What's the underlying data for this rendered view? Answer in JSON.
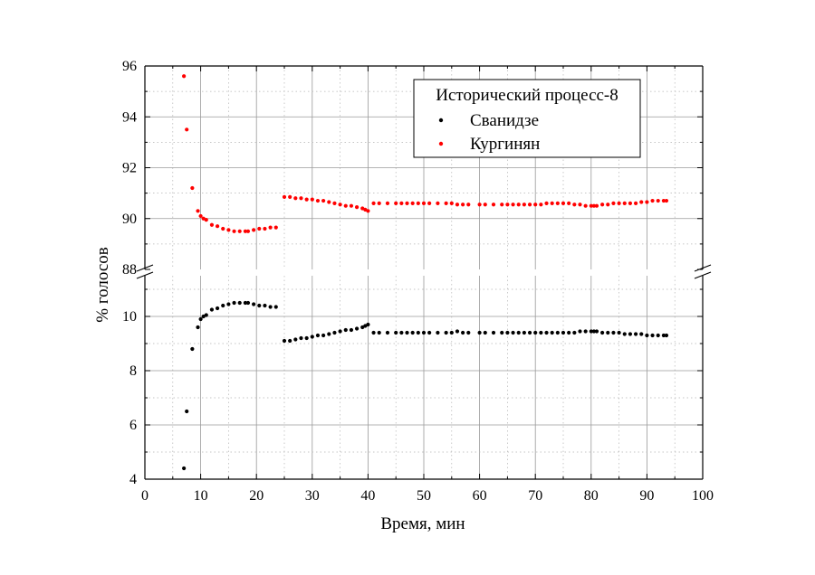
{
  "chart_data": {
    "type": "scatter",
    "xlabel": "Время, мин",
    "ylabel": "% голосов",
    "xlim": [
      0,
      100
    ],
    "ylim_upper": [
      88,
      96
    ],
    "ylim_lower": [
      4,
      11.5
    ],
    "axis_break": "y between 11.5 and 88",
    "x_ticks": [
      0,
      10,
      20,
      30,
      40,
      50,
      60,
      70,
      80,
      90,
      100
    ],
    "x_tick_labels": [
      "0",
      "10",
      "20",
      "30",
      "40",
      "50",
      "60",
      "70",
      "80",
      "90",
      "100"
    ],
    "y_ticks_upper": [
      88,
      90,
      92,
      94,
      96
    ],
    "y_tick_labels_upper": [
      "88",
      "90",
      "92",
      "94",
      "96"
    ],
    "y_ticks_lower": [
      4,
      6,
      8,
      10
    ],
    "y_tick_labels_lower": [
      "4",
      "6",
      "8",
      "10"
    ],
    "grid": true,
    "legend": {
      "title": "Исторический процесс-8",
      "placement": "top-right"
    },
    "series": [
      {
        "name": "Сванидзе",
        "color": "#000000",
        "points": [
          [
            7.0,
            4.4
          ],
          [
            7.5,
            6.5
          ],
          [
            8.5,
            8.8
          ],
          [
            9.5,
            9.6
          ],
          [
            10.0,
            9.9
          ],
          [
            10.5,
            10.0
          ],
          [
            11.0,
            10.05
          ],
          [
            12.0,
            10.25
          ],
          [
            13.0,
            10.3
          ],
          [
            14.0,
            10.4
          ],
          [
            15.0,
            10.45
          ],
          [
            16.0,
            10.5
          ],
          [
            17.0,
            10.5
          ],
          [
            18.0,
            10.5
          ],
          [
            18.5,
            10.5
          ],
          [
            19.5,
            10.45
          ],
          [
            20.5,
            10.4
          ],
          [
            21.5,
            10.4
          ],
          [
            22.5,
            10.35
          ],
          [
            23.5,
            10.35
          ],
          [
            25.0,
            9.1
          ],
          [
            26.0,
            9.1
          ],
          [
            27.0,
            9.15
          ],
          [
            28.0,
            9.2
          ],
          [
            29.0,
            9.2
          ],
          [
            30.0,
            9.25
          ],
          [
            31.0,
            9.3
          ],
          [
            32.0,
            9.3
          ],
          [
            33.0,
            9.35
          ],
          [
            34.0,
            9.4
          ],
          [
            35.0,
            9.45
          ],
          [
            36.0,
            9.5
          ],
          [
            37.0,
            9.5
          ],
          [
            38.0,
            9.55
          ],
          [
            39.0,
            9.6
          ],
          [
            39.5,
            9.65
          ],
          [
            40.0,
            9.7
          ],
          [
            41.0,
            9.4
          ],
          [
            42.0,
            9.4
          ],
          [
            43.5,
            9.4
          ],
          [
            45.0,
            9.4
          ],
          [
            46.0,
            9.4
          ],
          [
            47.0,
            9.4
          ],
          [
            48.0,
            9.4
          ],
          [
            49.0,
            9.4
          ],
          [
            50.0,
            9.4
          ],
          [
            51.0,
            9.4
          ],
          [
            52.5,
            9.4
          ],
          [
            54.0,
            9.4
          ],
          [
            55.0,
            9.4
          ],
          [
            56.0,
            9.45
          ],
          [
            57.0,
            9.4
          ],
          [
            58.0,
            9.4
          ],
          [
            60.0,
            9.4
          ],
          [
            61.0,
            9.4
          ],
          [
            62.5,
            9.4
          ],
          [
            64.0,
            9.4
          ],
          [
            65.0,
            9.4
          ],
          [
            66.0,
            9.4
          ],
          [
            67.0,
            9.4
          ],
          [
            68.0,
            9.4
          ],
          [
            69.0,
            9.4
          ],
          [
            70.0,
            9.4
          ],
          [
            71.0,
            9.4
          ],
          [
            72.0,
            9.4
          ],
          [
            73.0,
            9.4
          ],
          [
            74.0,
            9.4
          ],
          [
            75.0,
            9.4
          ],
          [
            76.0,
            9.4
          ],
          [
            77.0,
            9.4
          ],
          [
            78.0,
            9.45
          ],
          [
            79.0,
            9.45
          ],
          [
            80.0,
            9.45
          ],
          [
            80.5,
            9.45
          ],
          [
            81.0,
            9.45
          ],
          [
            82.0,
            9.4
          ],
          [
            83.0,
            9.4
          ],
          [
            84.0,
            9.4
          ],
          [
            85.0,
            9.4
          ],
          [
            86.0,
            9.35
          ],
          [
            87.0,
            9.35
          ],
          [
            88.0,
            9.35
          ],
          [
            89.0,
            9.35
          ],
          [
            90.0,
            9.3
          ],
          [
            91.0,
            9.3
          ],
          [
            92.0,
            9.3
          ],
          [
            93.0,
            9.3
          ],
          [
            93.5,
            9.3
          ]
        ]
      },
      {
        "name": "Кургинян",
        "color": "#ff0000",
        "points": [
          [
            7.0,
            95.6
          ],
          [
            7.5,
            93.5
          ],
          [
            8.5,
            91.2
          ],
          [
            9.5,
            90.3
          ],
          [
            10.0,
            90.1
          ],
          [
            10.5,
            90.0
          ],
          [
            11.0,
            89.95
          ],
          [
            12.0,
            89.75
          ],
          [
            13.0,
            89.7
          ],
          [
            14.0,
            89.6
          ],
          [
            15.0,
            89.55
          ],
          [
            16.0,
            89.5
          ],
          [
            17.0,
            89.5
          ],
          [
            18.0,
            89.5
          ],
          [
            18.5,
            89.5
          ],
          [
            19.5,
            89.55
          ],
          [
            20.5,
            89.6
          ],
          [
            21.5,
            89.6
          ],
          [
            22.5,
            89.65
          ],
          [
            23.5,
            89.65
          ],
          [
            25.0,
            90.85
          ],
          [
            26.0,
            90.85
          ],
          [
            27.0,
            90.8
          ],
          [
            28.0,
            90.8
          ],
          [
            29.0,
            90.75
          ],
          [
            30.0,
            90.75
          ],
          [
            31.0,
            90.7
          ],
          [
            32.0,
            90.7
          ],
          [
            33.0,
            90.65
          ],
          [
            34.0,
            90.6
          ],
          [
            35.0,
            90.55
          ],
          [
            36.0,
            90.5
          ],
          [
            37.0,
            90.5
          ],
          [
            38.0,
            90.45
          ],
          [
            39.0,
            90.4
          ],
          [
            39.5,
            90.35
          ],
          [
            40.0,
            90.3
          ],
          [
            41.0,
            90.6
          ],
          [
            42.0,
            90.6
          ],
          [
            43.5,
            90.6
          ],
          [
            45.0,
            90.6
          ],
          [
            46.0,
            90.6
          ],
          [
            47.0,
            90.6
          ],
          [
            48.0,
            90.6
          ],
          [
            49.0,
            90.6
          ],
          [
            50.0,
            90.6
          ],
          [
            51.0,
            90.6
          ],
          [
            52.5,
            90.6
          ],
          [
            54.0,
            90.6
          ],
          [
            55.0,
            90.6
          ],
          [
            56.0,
            90.55
          ],
          [
            57.0,
            90.55
          ],
          [
            58.0,
            90.55
          ],
          [
            60.0,
            90.55
          ],
          [
            61.0,
            90.55
          ],
          [
            62.5,
            90.55
          ],
          [
            64.0,
            90.55
          ],
          [
            65.0,
            90.55
          ],
          [
            66.0,
            90.55
          ],
          [
            67.0,
            90.55
          ],
          [
            68.0,
            90.55
          ],
          [
            69.0,
            90.55
          ],
          [
            70.0,
            90.55
          ],
          [
            71.0,
            90.55
          ],
          [
            72.0,
            90.6
          ],
          [
            73.0,
            90.6
          ],
          [
            74.0,
            90.6
          ],
          [
            75.0,
            90.6
          ],
          [
            76.0,
            90.6
          ],
          [
            77.0,
            90.55
          ],
          [
            78.0,
            90.55
          ],
          [
            79.0,
            90.5
          ],
          [
            80.0,
            90.5
          ],
          [
            80.5,
            90.5
          ],
          [
            81.0,
            90.5
          ],
          [
            82.0,
            90.55
          ],
          [
            83.0,
            90.55
          ],
          [
            84.0,
            90.6
          ],
          [
            85.0,
            90.6
          ],
          [
            86.0,
            90.6
          ],
          [
            87.0,
            90.6
          ],
          [
            88.0,
            90.6
          ],
          [
            89.0,
            90.65
          ],
          [
            90.0,
            90.65
          ],
          [
            91.0,
            90.7
          ],
          [
            92.0,
            90.7
          ],
          [
            93.0,
            90.7
          ],
          [
            93.5,
            90.7
          ]
        ]
      }
    ]
  }
}
